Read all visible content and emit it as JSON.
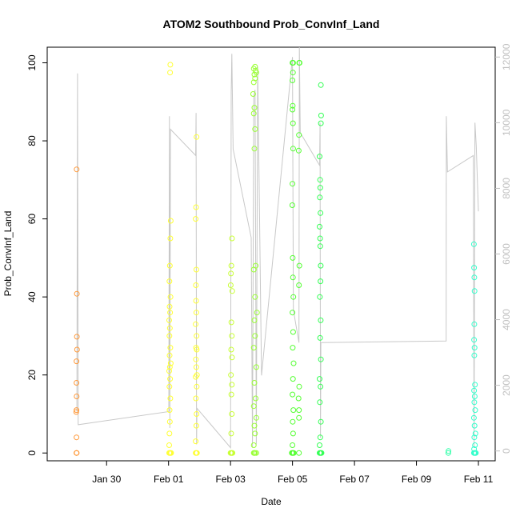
{
  "chart_data": {
    "type": "scatter",
    "title": "ATOM2 Southbound Prob_ConvInf_Land",
    "xlabel": "Date",
    "ylabel": "Prob_ConvInf_Land",
    "xlim": [
      "2014-01-28T02:00",
      "2014-02-11T13:00"
    ],
    "ylim": [
      -2,
      104
    ],
    "x_ticks": [
      {
        "date": "2014-01-30T00:00",
        "label": "Jan 30"
      },
      {
        "date": "2014-02-01T00:00",
        "label": "Feb 01"
      },
      {
        "date": "2014-02-03T00:00",
        "label": "Feb 03"
      },
      {
        "date": "2014-02-05T00:00",
        "label": "Feb 05"
      },
      {
        "date": "2014-02-07T00:00",
        "label": "Feb 07"
      },
      {
        "date": "2014-02-09T00:00",
        "label": "Feb 09"
      },
      {
        "date": "2014-02-11T00:00",
        "label": "Feb 11"
      }
    ],
    "y_ticks": [
      0,
      20,
      40,
      60,
      80,
      100
    ],
    "secondary_axis": {
      "ylim": [
        -300,
        12300
      ],
      "ticks": [
        0,
        2000,
        4000,
        6000,
        8000,
        10000,
        12000
      ],
      "color": "#c0c0c0",
      "series": {
        "name": "",
        "color": "#c8c8c8",
        "points": [
          [
            "2014-01-29T01:00",
            1200
          ],
          [
            "2014-01-29T01:30",
            11500
          ],
          [
            "2014-01-29T02:00",
            800
          ],
          [
            "2014-02-01T00:10",
            1200
          ],
          [
            "2014-02-01T00:40",
            10200
          ],
          [
            "2014-02-01T01:00",
            700
          ],
          [
            "2014-02-01T01:30",
            9800
          ],
          [
            "2014-02-01T21:00",
            9000
          ],
          [
            "2014-02-01T21:20",
            10300
          ],
          [
            "2014-02-01T21:40",
            200
          ],
          [
            "2014-02-01T22:00",
            1300
          ],
          [
            "2014-02-03T00:00",
            100
          ],
          [
            "2014-02-03T00:30",
            10900
          ],
          [
            "2014-02-03T01:00",
            12100
          ],
          [
            "2014-02-03T02:00",
            9200
          ],
          [
            "2014-02-03T16:00",
            6500
          ],
          [
            "2014-02-03T17:00",
            100
          ],
          [
            "2014-02-03T18:00",
            10800
          ],
          [
            "2014-02-03T19:00",
            11000
          ],
          [
            "2014-02-03T20:00",
            200
          ],
          [
            "2014-02-03T21:00",
            11700
          ],
          [
            "2014-02-04T00:00",
            2300
          ],
          [
            "2014-02-05T00:00",
            12000
          ],
          [
            "2014-02-05T00:40",
            4300
          ],
          [
            "2014-02-05T05:00",
            3300
          ],
          [
            "2014-02-05T05:20",
            12300
          ],
          [
            "2014-02-05T06:00",
            9700
          ],
          [
            "2014-02-05T21:00",
            8700
          ],
          [
            "2014-02-05T21:20",
            10000
          ],
          [
            "2014-02-05T21:40",
            400
          ],
          [
            "2014-02-05T22:00",
            3300
          ],
          [
            "2014-02-09T23:00",
            3350
          ],
          [
            "2014-02-09T23:10",
            10200
          ],
          [
            "2014-02-10T00:00",
            8500
          ],
          [
            "2014-02-10T20:00",
            9000
          ],
          [
            "2014-02-10T20:40",
            100
          ],
          [
            "2014-02-10T21:20",
            10000
          ],
          [
            "2014-02-10T22:20",
            9300
          ],
          [
            "2014-02-11T00:00",
            7300
          ]
        ]
      }
    },
    "series": [
      {
        "name": "",
        "color": "#ff9a3c",
        "points": [
          [
            "2014-01-29T00:40",
            0
          ],
          [
            "2014-01-29T00:45",
            0
          ],
          [
            "2014-01-29T00:50",
            0
          ],
          [
            "2014-01-29T00:30",
            10.5
          ],
          [
            "2014-01-29T00:40",
            11
          ],
          [
            "2014-01-29T00:50",
            14.5
          ],
          [
            "2014-01-29T00:40",
            18
          ],
          [
            "2014-01-29T00:40",
            23.5
          ],
          [
            "2014-01-29T01:05",
            26.5
          ],
          [
            "2014-01-29T01:00",
            29.8
          ],
          [
            "2014-01-29T01:00",
            40.8
          ],
          [
            "2014-01-29T00:50",
            72.7
          ],
          [
            "2014-01-29T00:40",
            4
          ]
        ]
      },
      {
        "name": "",
        "color": "#ffff33",
        "points": [
          [
            "2014-02-01T00:30",
            0
          ],
          [
            "2014-02-01T01:00",
            0
          ],
          [
            "2014-02-01T01:30",
            0
          ],
          [
            "2014-02-01T02:00",
            0
          ],
          [
            "2014-02-01T00:30",
            2
          ],
          [
            "2014-02-01T00:40",
            5
          ],
          [
            "2014-02-01T01:00",
            8
          ],
          [
            "2014-02-01T00:50",
            11
          ],
          [
            "2014-02-01T01:20",
            14
          ],
          [
            "2014-02-01T00:40",
            17
          ],
          [
            "2014-02-01T01:10",
            19
          ],
          [
            "2014-02-01T00:30",
            21
          ],
          [
            "2014-02-01T01:00",
            22
          ],
          [
            "2014-02-01T01:40",
            23
          ],
          [
            "2014-02-01T00:50",
            25
          ],
          [
            "2014-02-01T01:20",
            27
          ],
          [
            "2014-02-01T00:40",
            30
          ],
          [
            "2014-02-01T01:00",
            32
          ],
          [
            "2014-02-01T00:30",
            34
          ],
          [
            "2014-02-01T01:10",
            36
          ],
          [
            "2014-02-01T00:50",
            37.5
          ],
          [
            "2014-02-01T01:30",
            40
          ],
          [
            "2014-02-01T01:00",
            48
          ],
          [
            "2014-02-01T01:20",
            55
          ],
          [
            "2014-02-01T01:40",
            59.5
          ],
          [
            "2014-02-01T01:10",
            97.5
          ],
          [
            "2014-02-01T01:20",
            99.5
          ],
          [
            "2014-02-01T00:40",
            44
          ],
          [
            "2014-02-01T21:00",
            0
          ],
          [
            "2014-02-01T21:30",
            0
          ],
          [
            "2014-02-01T22:00",
            0
          ],
          [
            "2014-02-01T21:00",
            3
          ],
          [
            "2014-02-01T21:30",
            7
          ],
          [
            "2014-02-01T21:40",
            10
          ],
          [
            "2014-02-01T21:10",
            14
          ],
          [
            "2014-02-01T21:50",
            17
          ],
          [
            "2014-02-01T21:00",
            19.5
          ],
          [
            "2014-02-01T22:00",
            20
          ],
          [
            "2014-02-01T21:30",
            22
          ],
          [
            "2014-02-01T21:10",
            24
          ],
          [
            "2014-02-01T21:50",
            26.5
          ],
          [
            "2014-02-01T21:20",
            27
          ],
          [
            "2014-02-01T21:40",
            30
          ],
          [
            "2014-02-01T21:00",
            33
          ],
          [
            "2014-02-01T21:30",
            36
          ],
          [
            "2014-02-01T21:20",
            39
          ],
          [
            "2014-02-01T21:10",
            43
          ],
          [
            "2014-02-01T21:30",
            47
          ],
          [
            "2014-02-01T21:00",
            60
          ],
          [
            "2014-02-01T21:20",
            63
          ],
          [
            "2014-02-01T21:40",
            81
          ]
        ]
      },
      {
        "name": "",
        "color": "#c8ff33",
        "points": [
          [
            "2014-02-03T00:00",
            0
          ],
          [
            "2014-02-03T00:30",
            0
          ],
          [
            "2014-02-03T01:00",
            0
          ],
          [
            "2014-02-03T01:30",
            0
          ],
          [
            "2014-02-03T00:30",
            5
          ],
          [
            "2014-02-03T01:00",
            10
          ],
          [
            "2014-02-03T00:40",
            15
          ],
          [
            "2014-02-03T01:00",
            17.5
          ],
          [
            "2014-02-03T00:20",
            20
          ],
          [
            "2014-02-03T01:10",
            24.5
          ],
          [
            "2014-02-03T00:30",
            26.5
          ],
          [
            "2014-02-03T01:00",
            30
          ],
          [
            "2014-02-03T00:40",
            33.5
          ],
          [
            "2014-02-03T00:10",
            43
          ],
          [
            "2014-02-03T00:20",
            46
          ],
          [
            "2014-02-03T00:40",
            48
          ],
          [
            "2014-02-03T01:20",
            41.5
          ],
          [
            "2014-02-03T01:10",
            55
          ]
        ]
      },
      {
        "name": "",
        "color": "#99ff33",
        "points": [
          [
            "2014-02-03T18:00",
            0
          ],
          [
            "2014-02-03T18:30",
            0
          ],
          [
            "2014-02-03T19:00",
            0
          ],
          [
            "2014-02-03T20:00",
            0
          ],
          [
            "2014-02-03T18:00",
            2
          ],
          [
            "2014-02-03T19:00",
            5
          ],
          [
            "2014-02-03T18:30",
            7
          ],
          [
            "2014-02-03T20:00",
            9
          ],
          [
            "2014-02-03T18:00",
            12
          ],
          [
            "2014-02-03T19:30",
            14
          ],
          [
            "2014-02-03T18:30",
            18
          ],
          [
            "2014-02-03T20:00",
            22
          ],
          [
            "2014-02-03T18:00",
            27
          ],
          [
            "2014-02-03T19:00",
            30
          ],
          [
            "2014-02-03T18:30",
            34
          ],
          [
            "2014-02-03T20:30",
            36
          ],
          [
            "2014-02-03T19:00",
            40
          ],
          [
            "2014-02-03T18:00",
            47
          ],
          [
            "2014-02-03T19:30",
            48
          ],
          [
            "2014-02-03T18:30",
            78
          ],
          [
            "2014-02-03T19:00",
            83
          ],
          [
            "2014-02-03T18:00",
            87
          ],
          [
            "2014-02-03T18:30",
            88.5
          ],
          [
            "2014-02-03T17:30",
            92
          ],
          [
            "2014-02-03T18:00",
            95
          ],
          [
            "2014-02-03T19:00",
            96
          ],
          [
            "2014-02-03T18:30",
            97
          ],
          [
            "2014-02-03T19:30",
            98
          ],
          [
            "2014-02-03T18:00",
            98.5
          ],
          [
            "2014-02-03T19:00",
            99
          ],
          [
            "2014-02-03T20:00",
            97.5
          ]
        ]
      },
      {
        "name": "",
        "color": "#55ff33",
        "points": [
          [
            "2014-02-04T23:30",
            0
          ],
          [
            "2014-02-05T00:00",
            0
          ],
          [
            "2014-02-05T00:30",
            0
          ],
          [
            "2014-02-05T01:00",
            0
          ],
          [
            "2014-02-05T00:00",
            2
          ],
          [
            "2014-02-05T00:30",
            5
          ],
          [
            "2014-02-05T00:10",
            8
          ],
          [
            "2014-02-05T00:40",
            11
          ],
          [
            "2014-02-05T00:00",
            15
          ],
          [
            "2014-02-05T00:20",
            19
          ],
          [
            "2014-02-05T00:50",
            23
          ],
          [
            "2014-02-05T00:10",
            27
          ],
          [
            "2014-02-05T00:30",
            31
          ],
          [
            "2014-02-05T00:00",
            36
          ],
          [
            "2014-02-05T00:40",
            40
          ],
          [
            "2014-02-05T00:20",
            45
          ],
          [
            "2014-02-05T00:10",
            50
          ],
          [
            "2014-02-04T23:50",
            63.5
          ],
          [
            "2014-02-05T00:00",
            69
          ],
          [
            "2014-02-05T00:30",
            78
          ],
          [
            "2014-02-05T00:20",
            84.5
          ],
          [
            "2014-02-05T00:00",
            88
          ],
          [
            "2014-02-05T00:10",
            89
          ],
          [
            "2014-02-05T00:00",
            95.5
          ],
          [
            "2014-02-05T00:20",
            97.5
          ],
          [
            "2014-02-05T00:00",
            100
          ],
          [
            "2014-02-05T00:30",
            100
          ],
          [
            "2014-02-05T05:00",
            0
          ],
          [
            "2014-02-05T05:00",
            9
          ],
          [
            "2014-02-05T05:00",
            11
          ],
          [
            "2014-02-05T04:40",
            14
          ],
          [
            "2014-02-05T05:10",
            17
          ],
          [
            "2014-02-05T05:00",
            43
          ],
          [
            "2014-02-05T05:20",
            48
          ],
          [
            "2014-02-05T04:50",
            77.5
          ],
          [
            "2014-02-05T05:00",
            81.5
          ],
          [
            "2014-02-05T05:10",
            100
          ],
          [
            "2014-02-05T05:30",
            100
          ]
        ]
      },
      {
        "name": "",
        "color": "#33ff55",
        "points": [
          [
            "2014-02-05T21:00",
            0
          ],
          [
            "2014-02-05T21:30",
            0
          ],
          [
            "2014-02-05T22:00",
            0
          ],
          [
            "2014-02-05T22:30",
            0
          ],
          [
            "2014-02-05T21:00",
            2
          ],
          [
            "2014-02-05T21:30",
            4
          ],
          [
            "2014-02-05T22:00",
            8
          ],
          [
            "2014-02-05T21:10",
            13
          ],
          [
            "2014-02-05T21:40",
            17
          ],
          [
            "2014-02-05T21:00",
            19
          ],
          [
            "2014-02-05T22:00",
            24
          ],
          [
            "2014-02-05T21:20",
            29.5
          ],
          [
            "2014-02-05T21:50",
            34
          ],
          [
            "2014-02-05T21:10",
            40
          ],
          [
            "2014-02-05T21:40",
            44
          ],
          [
            "2014-02-05T21:50",
            48
          ],
          [
            "2014-02-05T21:30",
            53
          ],
          [
            "2014-02-05T21:20",
            55
          ],
          [
            "2014-02-05T21:00",
            58
          ],
          [
            "2014-02-05T21:40",
            61.5
          ],
          [
            "2014-02-05T21:10",
            65.5
          ],
          [
            "2014-02-05T21:30",
            68
          ],
          [
            "2014-02-05T21:20",
            70
          ],
          [
            "2014-02-05T21:00",
            76
          ],
          [
            "2014-02-05T22:00",
            84.5
          ],
          [
            "2014-02-05T22:10",
            86.5
          ],
          [
            "2014-02-05T22:00",
            94.3
          ]
        ]
      },
      {
        "name": "",
        "color": "#33ffaa",
        "points": [
          [
            "2014-02-10T00:40",
            0
          ],
          [
            "2014-02-10T00:50",
            0.5
          ]
        ]
      },
      {
        "name": "",
        "color": "#33ffcc",
        "points": [
          [
            "2014-02-10T20:30",
            0
          ],
          [
            "2014-02-10T21:00",
            0
          ],
          [
            "2014-02-10T21:30",
            0
          ],
          [
            "2014-02-10T22:00",
            0
          ],
          [
            "2014-02-10T20:40",
            1
          ],
          [
            "2014-02-10T21:20",
            2
          ],
          [
            "2014-02-10T20:50",
            4
          ],
          [
            "2014-02-10T21:40",
            5
          ],
          [
            "2014-02-10T21:00",
            7
          ],
          [
            "2014-02-10T20:30",
            9
          ],
          [
            "2014-02-10T21:30",
            11
          ],
          [
            "2014-02-10T20:50",
            13
          ],
          [
            "2014-02-10T21:10",
            14.5
          ],
          [
            "2014-02-10T20:40",
            16
          ],
          [
            "2014-02-10T21:20",
            17.5
          ],
          [
            "2014-02-10T20:50",
            25
          ],
          [
            "2014-02-10T21:00",
            27
          ],
          [
            "2014-02-10T20:40",
            29
          ],
          [
            "2014-02-10T20:50",
            33
          ],
          [
            "2014-02-10T21:00",
            41.5
          ],
          [
            "2014-02-10T20:50",
            45
          ],
          [
            "2014-02-10T20:40",
            47.5
          ],
          [
            "2014-02-10T20:30",
            53.5
          ]
        ]
      }
    ]
  }
}
